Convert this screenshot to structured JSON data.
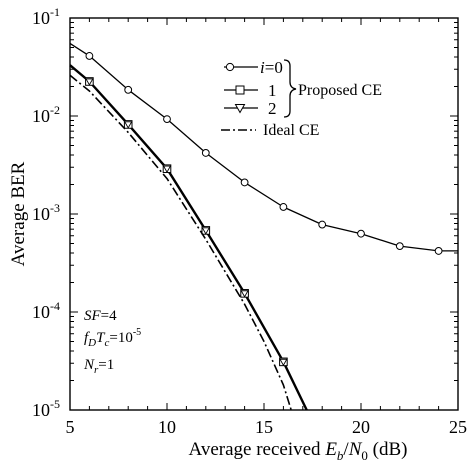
{
  "chart_data": {
    "type": "line",
    "xlabel_prefix": "Average received ",
    "xlabel_e": "E",
    "xlabel_b": "b",
    "xlabel_slash": "/",
    "xlabel_n": "N",
    "xlabel_0": "0",
    "xlabel_unit": " (dB)",
    "ylabel": "Average BER",
    "xlim": [
      5,
      25
    ],
    "ylim": [
      1e-05,
      0.1
    ],
    "y_scale": "log",
    "x_ticks": [
      5,
      10,
      15,
      20,
      25
    ],
    "y_ticks": [
      {
        "value": 0.1,
        "base": "10",
        "exp": "-1"
      },
      {
        "value": 0.01,
        "base": "10",
        "exp": "-2"
      },
      {
        "value": 0.001,
        "base": "10",
        "exp": "-3"
      },
      {
        "value": 0.0001,
        "base": "10",
        "exp": "-4"
      },
      {
        "value": 1e-05,
        "base": "10",
        "exp": "-5"
      }
    ],
    "series": [
      {
        "name": "i=0",
        "label_var": "i",
        "label_rest": "=0",
        "marker": "circle",
        "style": "solid",
        "width": 1.3,
        "x": [
          5,
          6,
          8,
          10,
          12,
          14,
          16,
          18,
          20,
          22,
          24,
          25
        ],
        "y": [
          0.055,
          0.041,
          0.0185,
          0.0093,
          0.0042,
          0.0021,
          0.00118,
          0.00078,
          0.00063,
          0.00047,
          0.00042,
          0.00042
        ],
        "marker_x": [
          6,
          8,
          10,
          12,
          14,
          16,
          18,
          20,
          22,
          24
        ]
      },
      {
        "name": "1",
        "label_var": "",
        "label_rest": "1",
        "marker": "square",
        "style": "solid",
        "width": 2.4,
        "x": [
          5,
          6,
          8,
          10,
          12,
          14,
          16,
          17.2
        ],
        "y": [
          0.033,
          0.0225,
          0.0082,
          0.0029,
          0.00068,
          0.000155,
          3.1e-05,
          1e-05
        ],
        "marker_x": [
          6,
          8,
          10,
          12,
          14,
          16
        ]
      },
      {
        "name": "2",
        "label_var": "",
        "label_rest": "2",
        "marker": "triangle",
        "style": "none",
        "width": 1.3,
        "x": [
          6,
          8,
          10,
          12,
          14,
          16
        ],
        "y": [
          0.0225,
          0.0082,
          0.0029,
          0.00068,
          0.000155,
          3.1e-05
        ],
        "marker_x": [
          6,
          8,
          10,
          12,
          14,
          16
        ]
      },
      {
        "name": "Ideal CE",
        "label_var": "",
        "label_rest": "Ideal CE",
        "marker": "none",
        "style": "dashdot",
        "width": 1.6,
        "x": [
          5,
          6,
          8,
          10,
          12,
          14,
          15,
          16,
          16.4
        ],
        "y": [
          0.026,
          0.018,
          0.0068,
          0.0023,
          0.00055,
          0.00012,
          5e-05,
          1.8e-05,
          1e-05
        ],
        "marker_x": []
      }
    ],
    "legend_placement": "top-right",
    "legend_group_label": "Proposed CE",
    "annotations": {
      "sf_var": "SF",
      "sf_val": "=4",
      "fd_f": "f",
      "fd_d": "D",
      "fd_t": "T",
      "fd_c": "c",
      "fd_val": "=10",
      "fd_exp": "-5",
      "nr_n": "N",
      "nr_r": "r",
      "nr_val": "=1"
    },
    "grid": false
  }
}
